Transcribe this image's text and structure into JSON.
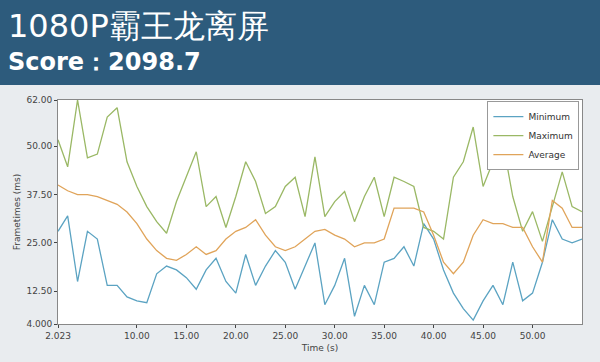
{
  "chart_data": {
    "type": "line",
    "title": "1080P霸王龙离屏",
    "subtitle": "Score：2098.7",
    "x_label": "Time (s)",
    "y_label": "Frametimes (ms)",
    "x": [
      2.023,
      3,
      4,
      5,
      6,
      7,
      8,
      9,
      10,
      11,
      12,
      13,
      14,
      15,
      16,
      17,
      18,
      19,
      20,
      21,
      22,
      23,
      24,
      25,
      26,
      27,
      28,
      29,
      30,
      31,
      32,
      33,
      34,
      35,
      36,
      37,
      38,
      39,
      40,
      41,
      42,
      43,
      44,
      45,
      46,
      47,
      48,
      49,
      50,
      51,
      52,
      53,
      54,
      55
    ],
    "series": [
      {
        "name": "Minimum",
        "color": "#5ba3c2",
        "values": [
          28,
          32,
          15,
          28,
          26,
          14,
          14,
          11,
          10,
          9.5,
          17,
          19,
          18,
          16,
          13,
          18,
          21,
          15,
          12,
          22,
          14,
          19,
          23,
          20,
          13,
          19,
          25,
          9,
          14,
          21,
          6,
          14,
          9,
          20,
          21,
          24,
          19,
          30,
          26,
          18,
          12,
          8,
          5,
          10,
          14,
          9,
          20,
          10,
          12,
          20,
          31,
          26,
          25,
          26
        ]
      },
      {
        "name": "Maximum",
        "color": "#9ab865",
        "values": [
          51.7,
          44.7,
          62,
          47,
          48,
          57.6,
          60,
          46,
          39.6,
          34.4,
          30.5,
          27.5,
          35.7,
          42,
          48.6,
          34.4,
          37,
          29,
          37,
          46,
          40.9,
          32.6,
          34.4,
          39.6,
          42,
          31.8,
          47.3,
          31.8,
          35.7,
          38.3,
          30.5,
          37,
          42,
          31.8,
          42,
          40.9,
          39.6,
          29,
          28,
          26,
          42,
          46,
          55,
          39.6,
          46,
          51,
          37,
          28,
          33.1,
          25.4,
          34.4,
          43.4,
          34.4,
          33.1
        ]
      },
      {
        "name": "Average",
        "color": "#e0a45a",
        "values": [
          40,
          38.5,
          37.5,
          37.5,
          37,
          36,
          35,
          33,
          30,
          26,
          23,
          21,
          20.5,
          22,
          24,
          22,
          23,
          26,
          28,
          29,
          31,
          27,
          24,
          23,
          24,
          26,
          28,
          28.5,
          27,
          26,
          24,
          25,
          25,
          26,
          34,
          34,
          34,
          33,
          27,
          20,
          17,
          20,
          27,
          31,
          30,
          30,
          29,
          29,
          24,
          20,
          36,
          34,
          29,
          29
        ]
      }
    ],
    "xlim": [
      2.023,
      55
    ],
    "xticks": [
      2.023,
      {
        "value": 10,
        "label": "10.00"
      },
      {
        "value": 15,
        "label": "15.00"
      },
      {
        "value": 20,
        "label": "20.00"
      },
      {
        "value": 25,
        "label": "25.00"
      },
      {
        "value": 30,
        "label": "30.00"
      },
      {
        "value": 35,
        "label": "35.00"
      },
      {
        "value": 40,
        "label": "40.00"
      },
      {
        "value": 45,
        "label": "45.00"
      },
      {
        "value": 50,
        "label": "50.00"
      }
    ],
    "ylim": [
      4,
      62
    ],
    "yticks": [
      {
        "value": 4,
        "label": "4.000"
      },
      {
        "value": 12.5,
        "label": "12.50"
      },
      {
        "value": 25,
        "label": "25.00"
      },
      {
        "value": 37.5,
        "label": "37.50"
      },
      {
        "value": 50,
        "label": "50.00"
      },
      {
        "value": 62,
        "label": "62.00"
      }
    ],
    "grid": false,
    "legend": "top right"
  }
}
